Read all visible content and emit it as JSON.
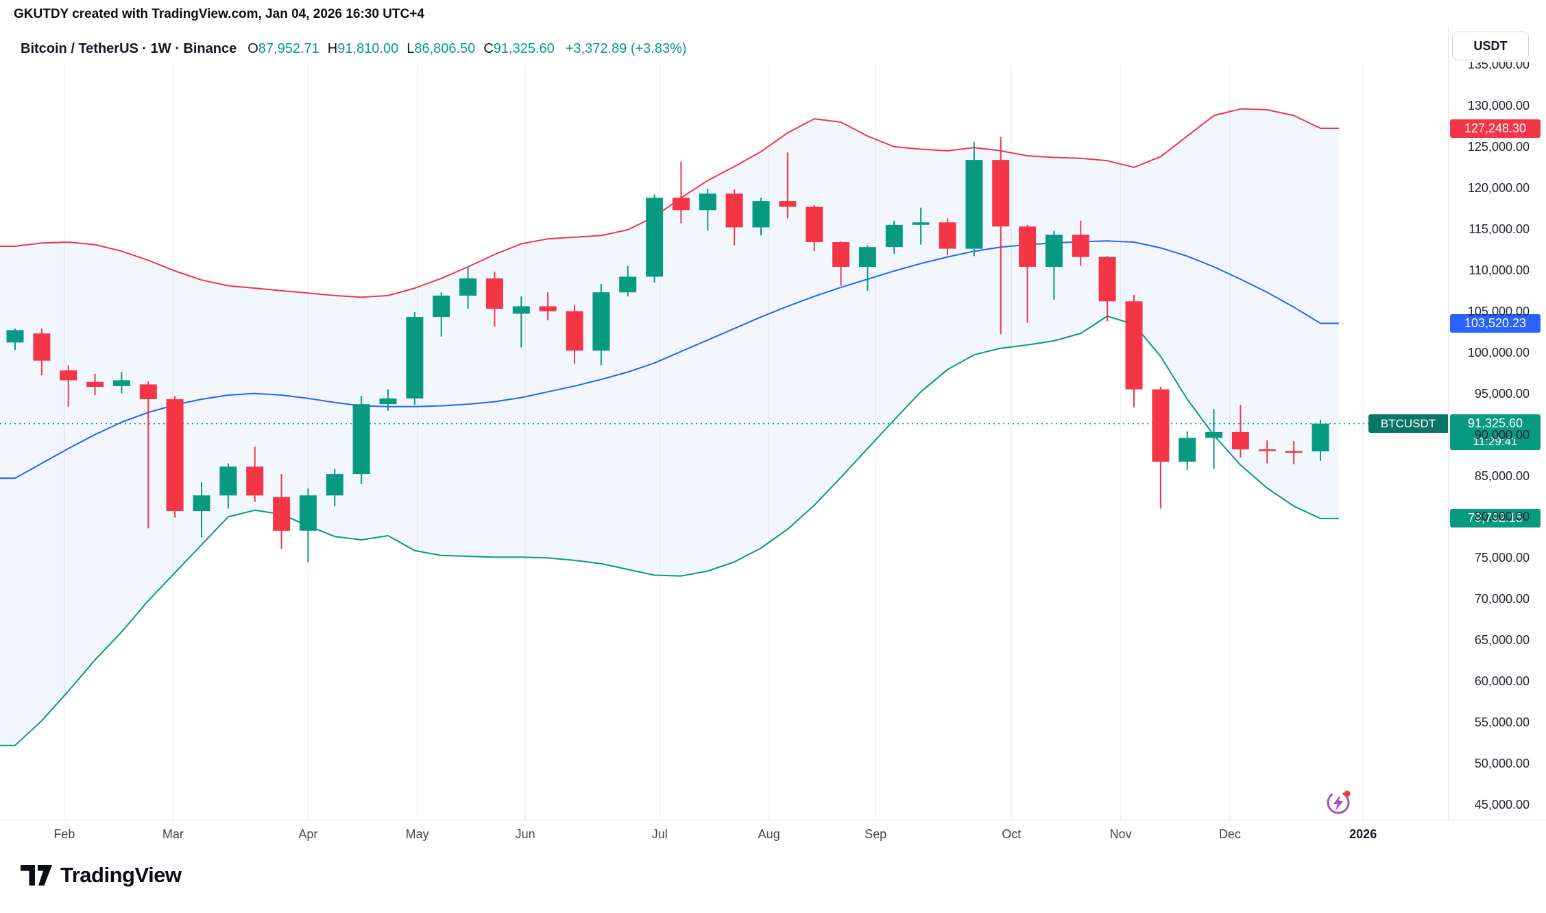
{
  "meta": {
    "watermark_line": "GKUTDY created with TradingView.com, Jan 04, 2026 16:30 UTC+4"
  },
  "header": {
    "symbol_title": "Bitcoin / TetherUS · 1W · Binance",
    "ohlc": [
      {
        "label": "O",
        "value": "87,952.71"
      },
      {
        "label": "H",
        "value": "91,810.00"
      },
      {
        "label": "L",
        "value": "86,806.50"
      },
      {
        "label": "C",
        "value": "91,325.60"
      }
    ],
    "change": "+3,372.89 (+3.83%)"
  },
  "price_scale": {
    "currency_button": "USDT"
  },
  "badges": {
    "upper_band": {
      "text": "127,248.30",
      "price": 127248.3,
      "color": "#f23645"
    },
    "sma": {
      "text": "103,520.23",
      "price": 103520.23,
      "color": "#2962ff"
    },
    "last_price": {
      "symbol": "BTCUSDT",
      "text": "91,325.60",
      "countdown": "11:29:41",
      "price": 91325.6,
      "color": "#089981",
      "symbol_color": "#0a7668"
    },
    "lower_band": {
      "text": "79,792.15",
      "price": 79792.15,
      "color": "#089981"
    }
  },
  "time_axis": {
    "ticks": [
      {
        "label": "Feb",
        "i": 1.85
      },
      {
        "label": "Mar",
        "i": 5.93
      },
      {
        "label": "Apr",
        "i": 11.0
      },
      {
        "label": "May",
        "i": 15.1
      },
      {
        "label": "Jun",
        "i": 19.15
      },
      {
        "label": "Jul",
        "i": 24.2
      },
      {
        "label": "Aug",
        "i": 28.3
      },
      {
        "label": "Sep",
        "i": 32.3
      },
      {
        "label": "Oct",
        "i": 37.4
      },
      {
        "label": "Nov",
        "i": 41.5
      },
      {
        "label": "Dec",
        "i": 45.6
      },
      {
        "label": "2026",
        "i": 50.6,
        "emphasis": true
      }
    ]
  },
  "footer": {
    "logo_text": "TradingView"
  },
  "chart_data": {
    "type": "candlestick",
    "symbol": "BTCUSDT",
    "interval": "1W",
    "exchange": "Binance",
    "title": "Bitcoin / TetherUS · 1W · Binance",
    "ylim": [
      45000,
      135000
    ],
    "grid": "vertical-only",
    "y_axis": {
      "min": 45000,
      "max": 135000,
      "step": 5000,
      "labels": [
        "45,000.00",
        "50,000.00",
        "55,000.00",
        "60,000.00",
        "65,000.00",
        "70,000.00",
        "75,000.00",
        "80,000.00",
        "85,000.00",
        "90,000.00",
        "95,000.00",
        "100,000.00",
        "105,000.00",
        "110,000.00",
        "115,000.00",
        "120,000.00",
        "125,000.00",
        "130,000.00",
        "135,000.00"
      ]
    },
    "last_close": 91325.6,
    "candles": [
      [
        101200,
        102900,
        100300,
        102700
      ],
      [
        102300,
        102900,
        97200,
        99000
      ],
      [
        97800,
        98400,
        93400,
        96600
      ],
      [
        96400,
        97400,
        94800,
        95800
      ],
      [
        95900,
        97600,
        95000,
        96600
      ],
      [
        96100,
        96500,
        78600,
        94300
      ],
      [
        94300,
        94700,
        79900,
        80700
      ],
      [
        80700,
        84200,
        77500,
        82600
      ],
      [
        82600,
        86500,
        81000,
        86100
      ],
      [
        86100,
        88500,
        81800,
        82600
      ],
      [
        82400,
        85200,
        76100,
        78300
      ],
      [
        78300,
        83500,
        74500,
        82600
      ],
      [
        82600,
        85800,
        81300,
        85200
      ],
      [
        85200,
        94700,
        84000,
        93700
      ],
      [
        93700,
        95500,
        92900,
        94400
      ],
      [
        94400,
        104900,
        93600,
        104300
      ],
      [
        104300,
        107300,
        101900,
        106900
      ],
      [
        106900,
        110400,
        105300,
        109000
      ],
      [
        109000,
        109800,
        103100,
        105300
      ],
      [
        104700,
        106800,
        100600,
        105600
      ],
      [
        105600,
        107300,
        103900,
        105000
      ],
      [
        105000,
        105800,
        98600,
        100200
      ],
      [
        100200,
        108300,
        98400,
        107300
      ],
      [
        107300,
        110500,
        106800,
        109200
      ],
      [
        109200,
        119200,
        108500,
        118800
      ],
      [
        118800,
        123200,
        115700,
        117300
      ],
      [
        117300,
        119900,
        114800,
        119300
      ],
      [
        119300,
        119800,
        113000,
        115200
      ],
      [
        115200,
        118800,
        114200,
        118400
      ],
      [
        118400,
        124300,
        116300,
        117700
      ],
      [
        117700,
        117900,
        112300,
        113400
      ],
      [
        113400,
        113500,
        108100,
        110400
      ],
      [
        110400,
        113000,
        107500,
        112800
      ],
      [
        112800,
        116000,
        112000,
        115500
      ],
      [
        115500,
        117600,
        113100,
        115800
      ],
      [
        115800,
        116300,
        111800,
        112600
      ],
      [
        112600,
        125600,
        111700,
        123400
      ],
      [
        123400,
        126200,
        102200,
        115300
      ],
      [
        115300,
        115500,
        103600,
        110400
      ],
      [
        110400,
        114800,
        106400,
        114300
      ],
      [
        114300,
        116000,
        110500,
        111600
      ],
      [
        111600,
        111700,
        103800,
        106200
      ],
      [
        106200,
        107000,
        93300,
        95500
      ],
      [
        95500,
        95800,
        81000,
        86700
      ],
      [
        86700,
        90400,
        85700,
        89600
      ],
      [
        89600,
        93100,
        85800,
        90300
      ],
      [
        90300,
        93600,
        87200,
        88200
      ],
      [
        88200,
        89300,
        86500,
        88000
      ],
      [
        88000,
        89200,
        86400,
        87950
      ],
      [
        87952.71,
        91810.0,
        86806.5,
        91325.6
      ]
    ],
    "bands": {
      "upper": [
        112900,
        113300,
        113400,
        113100,
        112300,
        111200,
        109900,
        108800,
        108100,
        107800,
        107500,
        107200,
        106900,
        106700,
        106900,
        107800,
        109000,
        110400,
        111900,
        113200,
        113800,
        114000,
        114200,
        114900,
        116500,
        118800,
        120900,
        122600,
        124400,
        126700,
        128400,
        128000,
        126300,
        125000,
        124700,
        124500,
        124900,
        124500,
        123900,
        123700,
        123600,
        123300,
        122500,
        123800,
        126300,
        128800,
        129600,
        129500,
        128800,
        127248.3
      ],
      "basis": [
        84700,
        86500,
        88300,
        90000,
        91500,
        92700,
        93600,
        94300,
        94800,
        95000,
        94800,
        94400,
        93900,
        93500,
        93400,
        93400,
        93500,
        93700,
        94000,
        94500,
        95200,
        95900,
        96700,
        97600,
        98700,
        100100,
        101500,
        102900,
        104300,
        105600,
        106800,
        107900,
        108900,
        109900,
        110800,
        111600,
        112300,
        112800,
        113100,
        113300,
        113450,
        113550,
        113400,
        112700,
        111700,
        110400,
        108900,
        107300,
        105500,
        103520.23
      ],
      "lower": [
        52200,
        55200,
        58800,
        62600,
        66000,
        69800,
        73200,
        76600,
        80000,
        80800,
        80300,
        78900,
        77600,
        77200,
        77700,
        75900,
        75300,
        75200,
        75100,
        75100,
        75000,
        74700,
        74300,
        73600,
        72900,
        72800,
        73400,
        74500,
        76200,
        78500,
        81400,
        84800,
        88300,
        91800,
        95200,
        97900,
        99700,
        100500,
        100900,
        101400,
        102300,
        104400,
        103400,
        99500,
        94300,
        89900,
        86300,
        83500,
        81300,
        79792.15
      ]
    },
    "colors": {
      "up": "#089981",
      "down": "#f23645",
      "upper": "#f23645",
      "basis": "#2962ff",
      "lower": "#089981",
      "band_fill": "rgba(41,98,255,0.06)",
      "grid": "#eef0f6",
      "last_price_line": "#089981"
    }
  }
}
